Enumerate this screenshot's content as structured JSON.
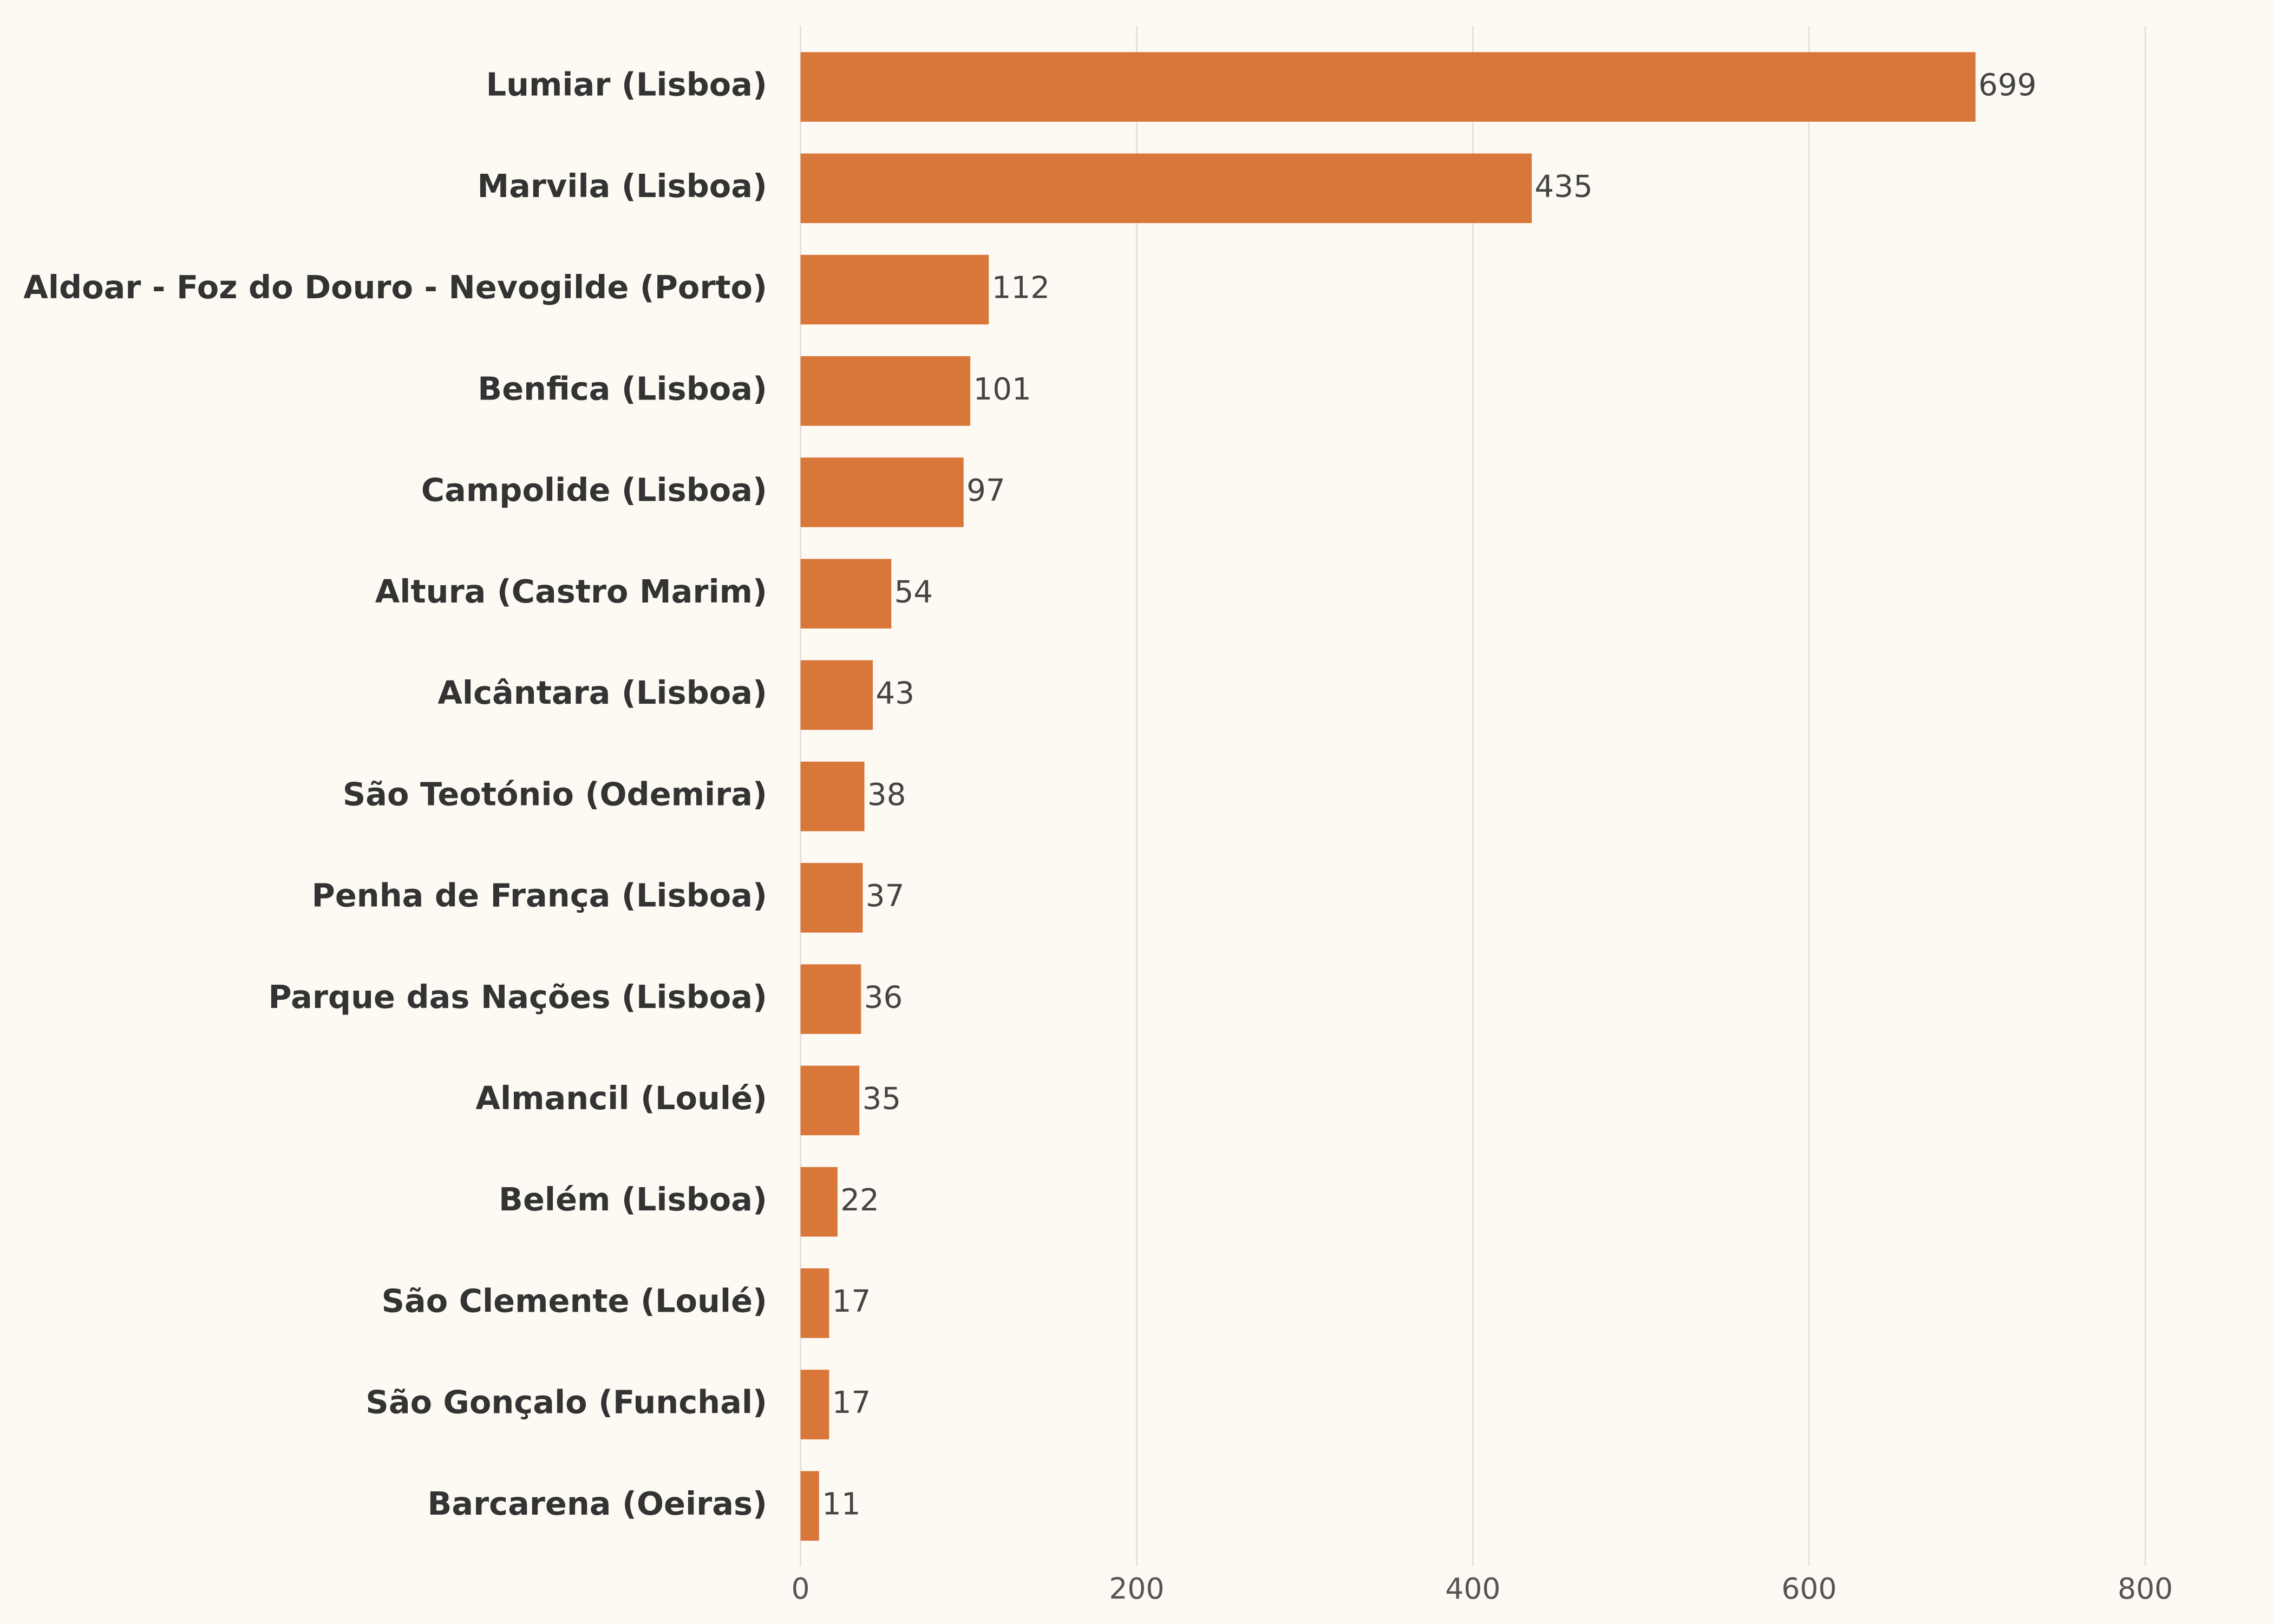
{
  "chart_data": {
    "type": "bar",
    "orientation": "horizontal",
    "categories": [
      "Lumiar (Lisboa)",
      "Marvila (Lisboa)",
      "Aldoar - Foz do Douro - Nevogilde (Porto)",
      "Benfica (Lisboa)",
      "Campolide (Lisboa)",
      "Altura (Castro Marim)",
      "Alcântara (Lisboa)",
      "São Teotónio (Odemira)",
      "Penha de França (Lisboa)",
      "Parque das Nações (Lisboa)",
      "Almancil (Loulé)",
      "Belém (Lisboa)",
      "São Clemente (Loulé)",
      "São Gonçalo (Funchal)",
      "Barcarena (Oeiras)"
    ],
    "values": [
      699,
      435,
      112,
      101,
      97,
      54,
      43,
      38,
      37,
      36,
      35,
      22,
      17,
      17,
      11
    ],
    "color": "#d97639",
    "xlim": [
      0,
      840
    ],
    "xticks": [
      0,
      200,
      400,
      600,
      800
    ],
    "grid": true
  }
}
